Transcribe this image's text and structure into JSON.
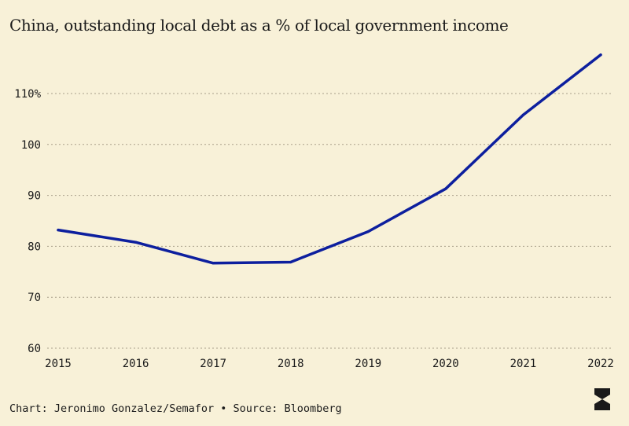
{
  "chart_data": {
    "type": "line",
    "title": "China, outstanding local debt as a % of local government income",
    "xlabel": "",
    "ylabel": "",
    "x": [
      2015,
      2016,
      2017,
      2018,
      2019,
      2020,
      2021,
      2022
    ],
    "series": [
      {
        "values": [
          83.2,
          80.8,
          76.7,
          76.9,
          82.9,
          91.3,
          105.8,
          117.6
        ]
      }
    ],
    "xlim": [
      2015,
      2022
    ],
    "ylim": [
      60,
      120
    ],
    "y_ticks": [
      {
        "value": 60,
        "label": "60"
      },
      {
        "value": 70,
        "label": "70"
      },
      {
        "value": 80,
        "label": "80"
      },
      {
        "value": 90,
        "label": "90"
      },
      {
        "value": 100,
        "label": "100"
      },
      {
        "value": 110,
        "label": "110%"
      }
    ],
    "x_ticks": [
      "2015",
      "2016",
      "2017",
      "2018",
      "2019",
      "2020",
      "2021",
      "2022"
    ],
    "grid": true,
    "grid_style": "dotted horizontal",
    "legend": "none"
  },
  "footer": {
    "credit": "Chart: Jeronimo Gonzalez/Semafor • Source: Bloomberg"
  },
  "colors": {
    "background": "#f8f1d8",
    "line": "#0d1f9e",
    "grid": "#a9a08a",
    "text": "#1a1a1a"
  },
  "logo": {
    "icon": "semafor-logo-icon"
  }
}
